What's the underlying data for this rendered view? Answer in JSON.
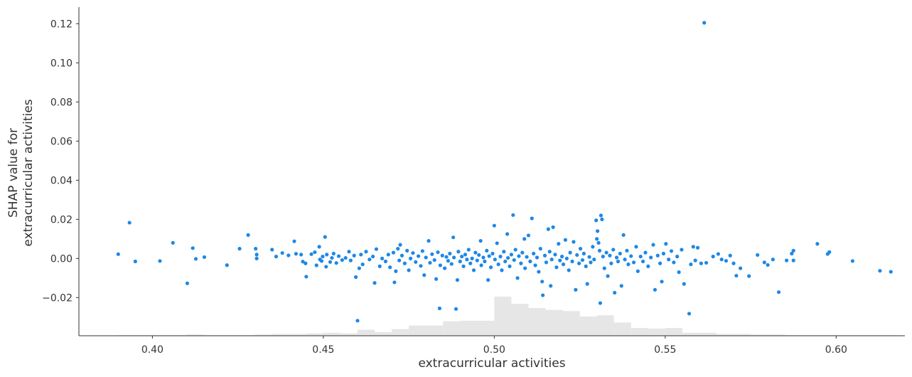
{
  "chart_data": {
    "type": "scatter",
    "title": "",
    "xlabel": "extracurricular activities",
    "ylabel_lines": [
      "SHAP value for",
      "extracurricular activities"
    ],
    "xlim": [
      0.3785,
      0.6201
    ],
    "ylim": [
      -0.0395,
      0.1285
    ],
    "x_ticks": [
      0.4,
      0.45,
      0.5,
      0.55,
      0.6
    ],
    "x_tick_labels": [
      "0.40",
      "0.45",
      "0.50",
      "0.55",
      "0.60"
    ],
    "y_ticks": [
      -0.02,
      0.0,
      0.02,
      0.04,
      0.06,
      0.08,
      0.1,
      0.12
    ],
    "y_tick_labels": [
      "−0.02",
      "0.00",
      "0.02",
      "0.04",
      "0.06",
      "0.08",
      "0.10",
      "0.12"
    ],
    "grid": false,
    "point_color": "#1e88e5",
    "histogram_color": "#e6e6e6",
    "histogram": {
      "description_units": "feature value bins with relative counts",
      "bins": [
        {
          "x0": 0.39,
          "x1": 0.41,
          "count": 1
        },
        {
          "x0": 0.41,
          "x1": 0.415,
          "count": 2
        },
        {
          "x0": 0.415,
          "x1": 0.43,
          "count": 1
        },
        {
          "x0": 0.43,
          "x1": 0.435,
          "count": 2
        },
        {
          "x0": 0.435,
          "x1": 0.44,
          "count": 3
        },
        {
          "x0": 0.44,
          "x1": 0.445,
          "count": 3
        },
        {
          "x0": 0.445,
          "x1": 0.45,
          "count": 4
        },
        {
          "x0": 0.45,
          "x1": 0.455,
          "count": 5
        },
        {
          "x0": 0.455,
          "x1": 0.46,
          "count": 4
        },
        {
          "x0": 0.46,
          "x1": 0.465,
          "count": 10
        },
        {
          "x0": 0.465,
          "x1": 0.47,
          "count": 6
        },
        {
          "x0": 0.47,
          "x1": 0.475,
          "count": 11
        },
        {
          "x0": 0.475,
          "x1": 0.48,
          "count": 17
        },
        {
          "x0": 0.48,
          "x1": 0.485,
          "count": 17
        },
        {
          "x0": 0.485,
          "x1": 0.49,
          "count": 24
        },
        {
          "x0": 0.49,
          "x1": 0.495,
          "count": 25
        },
        {
          "x0": 0.495,
          "x1": 0.5,
          "count": 25
        },
        {
          "x0": 0.5,
          "x1": 0.505,
          "count": 65
        },
        {
          "x0": 0.505,
          "x1": 0.51,
          "count": 53
        },
        {
          "x0": 0.51,
          "x1": 0.515,
          "count": 46
        },
        {
          "x0": 0.515,
          "x1": 0.52,
          "count": 43
        },
        {
          "x0": 0.52,
          "x1": 0.525,
          "count": 41
        },
        {
          "x0": 0.525,
          "x1": 0.53,
          "count": 32
        },
        {
          "x0": 0.53,
          "x1": 0.535,
          "count": 34
        },
        {
          "x0": 0.535,
          "x1": 0.54,
          "count": 22
        },
        {
          "x0": 0.54,
          "x1": 0.545,
          "count": 13
        },
        {
          "x0": 0.545,
          "x1": 0.55,
          "count": 12
        },
        {
          "x0": 0.55,
          "x1": 0.555,
          "count": 13
        },
        {
          "x0": 0.555,
          "x1": 0.56,
          "count": 5
        },
        {
          "x0": 0.56,
          "x1": 0.565,
          "count": 5
        },
        {
          "x0": 0.565,
          "x1": 0.575,
          "count": 3
        },
        {
          "x0": 0.575,
          "x1": 0.585,
          "count": 2
        },
        {
          "x0": 0.585,
          "x1": 0.6,
          "count": 1
        },
        {
          "x0": 0.6,
          "x1": 0.618,
          "count": 1
        }
      ]
    },
    "points": [
      {
        "x": 0.5614,
        "y": 0.1205
      },
      {
        "x": 0.3933,
        "y": 0.0183
      },
      {
        "x": 0.39,
        "y": 0.0022
      },
      {
        "x": 0.395,
        "y": -0.0015
      },
      {
        "x": 0.4022,
        "y": -0.0013
      },
      {
        "x": 0.406,
        "y": 0.008
      },
      {
        "x": 0.4102,
        "y": -0.0127
      },
      {
        "x": 0.4118,
        "y": 0.0053
      },
      {
        "x": 0.4127,
        "y": -0.0002
      },
      {
        "x": 0.4152,
        "y": 0.0007
      },
      {
        "x": 0.4218,
        "y": -0.0034
      },
      {
        "x": 0.4255,
        "y": 0.005
      },
      {
        "x": 0.428,
        "y": 0.012
      },
      {
        "x": 0.4302,
        "y": 0.005
      },
      {
        "x": 0.4305,
        "y": 0.002
      },
      {
        "x": 0.4305,
        "y": 0.0
      },
      {
        "x": 0.435,
        "y": 0.0045
      },
      {
        "x": 0.4362,
        "y": 0.001
      },
      {
        "x": 0.438,
        "y": 0.0028
      },
      {
        "x": 0.4398,
        "y": 0.0016
      },
      {
        "x": 0.4415,
        "y": 0.0088
      },
      {
        "x": 0.442,
        "y": 0.0024
      },
      {
        "x": 0.4435,
        "y": 0.002
      },
      {
        "x": 0.444,
        "y": -0.0016
      },
      {
        "x": 0.4448,
        "y": -0.0025
      },
      {
        "x": 0.445,
        "y": -0.0093
      },
      {
        "x": 0.4465,
        "y": 0.0022
      },
      {
        "x": 0.4475,
        "y": 0.0032
      },
      {
        "x": 0.448,
        "y": -0.0035
      },
      {
        "x": 0.4488,
        "y": 0.006
      },
      {
        "x": 0.449,
        "y": -0.0005
      },
      {
        "x": 0.4495,
        "y": -0.0013
      },
      {
        "x": 0.4498,
        "y": 0.001
      },
      {
        "x": 0.4505,
        "y": 0.011
      },
      {
        "x": 0.4508,
        "y": -0.0042
      },
      {
        "x": 0.451,
        "y": 0.002
      },
      {
        "x": 0.452,
        "y": -0.0018
      },
      {
        "x": 0.4525,
        "y": 0.0003
      },
      {
        "x": 0.453,
        "y": 0.0025
      },
      {
        "x": 0.4538,
        "y": -0.0023
      },
      {
        "x": 0.4545,
        "y": 0.0012
      },
      {
        "x": 0.4555,
        "y": -0.0008
      },
      {
        "x": 0.4565,
        "y": 0.0003
      },
      {
        "x": 0.4575,
        "y": 0.0035
      },
      {
        "x": 0.458,
        "y": -0.001
      },
      {
        "x": 0.459,
        "y": 0.0015
      },
      {
        "x": 0.4595,
        "y": -0.0095
      },
      {
        "x": 0.46,
        "y": -0.0318
      },
      {
        "x": 0.4605,
        "y": -0.005
      },
      {
        "x": 0.461,
        "y": 0.002
      },
      {
        "x": 0.4615,
        "y": -0.003
      },
      {
        "x": 0.4625,
        "y": 0.0035
      },
      {
        "x": 0.4635,
        "y": -0.0005
      },
      {
        "x": 0.4645,
        "y": 0.001
      },
      {
        "x": 0.465,
        "y": -0.0125
      },
      {
        "x": 0.4655,
        "y": 0.0048
      },
      {
        "x": 0.4665,
        "y": -0.004
      },
      {
        "x": 0.4672,
        "y": 0.0
      },
      {
        "x": 0.4682,
        "y": -0.0015
      },
      {
        "x": 0.469,
        "y": 0.002
      },
      {
        "x": 0.4695,
        "y": -0.0045
      },
      {
        "x": 0.4705,
        "y": 0.003
      },
      {
        "x": 0.4708,
        "y": -0.0122
      },
      {
        "x": 0.4712,
        "y": -0.0065
      },
      {
        "x": 0.4718,
        "y": 0.005
      },
      {
        "x": 0.4722,
        "y": -0.001
      },
      {
        "x": 0.4725,
        "y": 0.007
      },
      {
        "x": 0.473,
        "y": 0.0015
      },
      {
        "x": 0.4738,
        "y": -0.0025
      },
      {
        "x": 0.4745,
        "y": 0.004
      },
      {
        "x": 0.475,
        "y": -0.006
      },
      {
        "x": 0.4755,
        "y": 0.0
      },
      {
        "x": 0.4762,
        "y": 0.0028
      },
      {
        "x": 0.477,
        "y": -0.0018
      },
      {
        "x": 0.4778,
        "y": 0.0012
      },
      {
        "x": 0.4785,
        "y": -0.0038
      },
      {
        "x": 0.479,
        "y": 0.0038
      },
      {
        "x": 0.4795,
        "y": -0.0085
      },
      {
        "x": 0.48,
        "y": 0.0005
      },
      {
        "x": 0.4808,
        "y": 0.009
      },
      {
        "x": 0.4812,
        "y": -0.0022
      },
      {
        "x": 0.4818,
        "y": 0.0022
      },
      {
        "x": 0.4825,
        "y": -0.0008
      },
      {
        "x": 0.483,
        "y": -0.0105
      },
      {
        "x": 0.4835,
        "y": 0.0032
      },
      {
        "x": 0.484,
        "y": -0.0255
      },
      {
        "x": 0.4842,
        "y": -0.0035
      },
      {
        "x": 0.4848,
        "y": 0.0015
      },
      {
        "x": 0.4855,
        "y": -0.005
      },
      {
        "x": 0.486,
        "y": 0.0008
      },
      {
        "x": 0.4865,
        "y": -0.0012
      },
      {
        "x": 0.487,
        "y": 0.0025
      },
      {
        "x": 0.4875,
        "y": -0.0028
      },
      {
        "x": 0.488,
        "y": 0.0108
      },
      {
        "x": 0.4882,
        "y": 0.0005
      },
      {
        "x": 0.4888,
        "y": -0.0258
      },
      {
        "x": 0.4892,
        "y": -0.011
      },
      {
        "x": 0.4895,
        "y": 0.0035
      },
      {
        "x": 0.49,
        "y": -0.0015
      },
      {
        "x": 0.4905,
        "y": 0.001
      },
      {
        "x": 0.491,
        "y": -0.004
      },
      {
        "x": 0.4915,
        "y": 0.002
      },
      {
        "x": 0.492,
        "y": -0.0005
      },
      {
        "x": 0.4925,
        "y": 0.0045
      },
      {
        "x": 0.493,
        "y": -0.0025
      },
      {
        "x": 0.4935,
        "y": 0.0
      },
      {
        "x": 0.494,
        "y": -0.006
      },
      {
        "x": 0.4945,
        "y": 0.003
      },
      {
        "x": 0.495,
        "y": -0.001
      },
      {
        "x": 0.4955,
        "y": 0.0018
      },
      {
        "x": 0.496,
        "y": 0.009
      },
      {
        "x": 0.4962,
        "y": -0.0035
      },
      {
        "x": 0.4968,
        "y": 0.0005
      },
      {
        "x": 0.4972,
        "y": -0.0015
      },
      {
        "x": 0.4978,
        "y": 0.004
      },
      {
        "x": 0.4982,
        "y": -0.011
      },
      {
        "x": 0.4985,
        "y": 0.0012
      },
      {
        "x": 0.499,
        "y": -0.0045
      },
      {
        "x": 0.4995,
        "y": 0.0025
      },
      {
        "x": 0.5,
        "y": 0.0168
      },
      {
        "x": 0.5002,
        "y": -0.0005
      },
      {
        "x": 0.5008,
        "y": 0.0078
      },
      {
        "x": 0.5012,
        "y": -0.003
      },
      {
        "x": 0.5018,
        "y": 0.001
      },
      {
        "x": 0.5022,
        "y": -0.006
      },
      {
        "x": 0.5028,
        "y": 0.0035
      },
      {
        "x": 0.5032,
        "y": -0.0015
      },
      {
        "x": 0.5038,
        "y": 0.0125
      },
      {
        "x": 0.504,
        "y": 0.0003
      },
      {
        "x": 0.5045,
        "y": -0.004
      },
      {
        "x": 0.505,
        "y": 0.002
      },
      {
        "x": 0.5055,
        "y": 0.0222
      },
      {
        "x": 0.5058,
        "y": -0.0008
      },
      {
        "x": 0.5062,
        "y": 0.0045
      },
      {
        "x": 0.5068,
        "y": -0.01
      },
      {
        "x": 0.5072,
        "y": 0.0012
      },
      {
        "x": 0.5078,
        "y": -0.0025
      },
      {
        "x": 0.5082,
        "y": 0.003
      },
      {
        "x": 0.5088,
        "y": 0.01
      },
      {
        "x": 0.509,
        "y": -0.005
      },
      {
        "x": 0.5095,
        "y": 0.0008
      },
      {
        "x": 0.51,
        "y": 0.0118
      },
      {
        "x": 0.5105,
        "y": -0.0015
      },
      {
        "x": 0.511,
        "y": 0.0205
      },
      {
        "x": 0.5115,
        "y": 0.0025
      },
      {
        "x": 0.512,
        "y": -0.0035
      },
      {
        "x": 0.5125,
        "y": 0.0005
      },
      {
        "x": 0.513,
        "y": -0.0068
      },
      {
        "x": 0.5135,
        "y": 0.005
      },
      {
        "x": 0.514,
        "y": -0.0118
      },
      {
        "x": 0.5142,
        "y": -0.0188
      },
      {
        "x": 0.5148,
        "y": 0.0015
      },
      {
        "x": 0.5152,
        "y": -0.002
      },
      {
        "x": 0.5158,
        "y": 0.015
      },
      {
        "x": 0.5162,
        "y": 0.0035
      },
      {
        "x": 0.5165,
        "y": -0.014
      },
      {
        "x": 0.5168,
        "y": -0.0005
      },
      {
        "x": 0.5172,
        "y": 0.016
      },
      {
        "x": 0.5178,
        "y": 0.002
      },
      {
        "x": 0.5182,
        "y": -0.0045
      },
      {
        "x": 0.5188,
        "y": 0.0075
      },
      {
        "x": 0.5192,
        "y": -0.001
      },
      {
        "x": 0.5198,
        "y": 0.001
      },
      {
        "x": 0.5202,
        "y": -0.003
      },
      {
        "x": 0.5208,
        "y": 0.0095
      },
      {
        "x": 0.5212,
        "y": 0.0
      },
      {
        "x": 0.5218,
        "y": -0.006
      },
      {
        "x": 0.5222,
        "y": 0.003
      },
      {
        "x": 0.5228,
        "y": -0.0015
      },
      {
        "x": 0.5232,
        "y": 0.0085
      },
      {
        "x": 0.5238,
        "y": -0.016
      },
      {
        "x": 0.5242,
        "y": 0.0018
      },
      {
        "x": 0.5248,
        "y": -0.0025
      },
      {
        "x": 0.5252,
        "y": 0.005
      },
      {
        "x": 0.5258,
        "y": -0.0008
      },
      {
        "x": 0.5262,
        "y": 0.0025
      },
      {
        "x": 0.5268,
        "y": -0.004
      },
      {
        "x": 0.5272,
        "y": -0.013
      },
      {
        "x": 0.5278,
        "y": 0.0008
      },
      {
        "x": 0.5282,
        "y": -0.002
      },
      {
        "x": 0.5288,
        "y": 0.006
      },
      {
        "x": 0.5292,
        "y": -0.0005
      },
      {
        "x": 0.5298,
        "y": 0.0195
      },
      {
        "x": 0.53,
        "y": 0.01
      },
      {
        "x": 0.5302,
        "y": 0.014
      },
      {
        "x": 0.5305,
        "y": 0.008
      },
      {
        "x": 0.5308,
        "y": 0.004
      },
      {
        "x": 0.531,
        "y": -0.0228
      },
      {
        "x": 0.5312,
        "y": 0.022
      },
      {
        "x": 0.5315,
        "y": 0.02
      },
      {
        "x": 0.5318,
        "y": 0.001
      },
      {
        "x": 0.5322,
        "y": -0.005
      },
      {
        "x": 0.5328,
        "y": 0.003
      },
      {
        "x": 0.5332,
        "y": -0.009
      },
      {
        "x": 0.5338,
        "y": 0.0015
      },
      {
        "x": 0.5342,
        "y": -0.0025
      },
      {
        "x": 0.5348,
        "y": 0.0045
      },
      {
        "x": 0.5352,
        "y": -0.0175
      },
      {
        "x": 0.5358,
        "y": 0.0005
      },
      {
        "x": 0.5362,
        "y": -0.0015
      },
      {
        "x": 0.5368,
        "y": 0.0025
      },
      {
        "x": 0.5372,
        "y": -0.014
      },
      {
        "x": 0.5378,
        "y": 0.012
      },
      {
        "x": 0.5382,
        "y": -0.0005
      },
      {
        "x": 0.5388,
        "y": 0.004
      },
      {
        "x": 0.5392,
        "y": -0.003
      },
      {
        "x": 0.54,
        "y": 0.0012
      },
      {
        "x": 0.5408,
        "y": -0.002
      },
      {
        "x": 0.5415,
        "y": 0.006
      },
      {
        "x": 0.542,
        "y": -0.0065
      },
      {
        "x": 0.5428,
        "y": 0.001
      },
      {
        "x": 0.5435,
        "y": -0.0015
      },
      {
        "x": 0.5442,
        "y": 0.003
      },
      {
        "x": 0.545,
        "y": -0.004
      },
      {
        "x": 0.5458,
        "y": 0.0005
      },
      {
        "x": 0.5465,
        "y": 0.007
      },
      {
        "x": 0.547,
        "y": -0.016
      },
      {
        "x": 0.5478,
        "y": 0.0015
      },
      {
        "x": 0.5485,
        "y": -0.0025
      },
      {
        "x": 0.549,
        "y": -0.0118
      },
      {
        "x": 0.5495,
        "y": 0.0025
      },
      {
        "x": 0.5502,
        "y": 0.0075
      },
      {
        "x": 0.551,
        "y": -0.0005
      },
      {
        "x": 0.5518,
        "y": 0.0038
      },
      {
        "x": 0.5525,
        "y": -0.002
      },
      {
        "x": 0.5535,
        "y": 0.001
      },
      {
        "x": 0.554,
        "y": -0.007
      },
      {
        "x": 0.5548,
        "y": 0.0045
      },
      {
        "x": 0.5555,
        "y": -0.013
      },
      {
        "x": 0.557,
        "y": -0.0282
      },
      {
        "x": 0.5575,
        "y": -0.003
      },
      {
        "x": 0.5582,
        "y": 0.006
      },
      {
        "x": 0.5588,
        "y": -0.001
      },
      {
        "x": 0.5595,
        "y": 0.0055
      },
      {
        "x": 0.5605,
        "y": -0.0025
      },
      {
        "x": 0.562,
        "y": -0.0022
      },
      {
        "x": 0.564,
        "y": 0.001
      },
      {
        "x": 0.5655,
        "y": 0.0023
      },
      {
        "x": 0.5665,
        "y": -0.0005
      },
      {
        "x": 0.5678,
        "y": -0.0012
      },
      {
        "x": 0.569,
        "y": 0.0015
      },
      {
        "x": 0.57,
        "y": -0.0025
      },
      {
        "x": 0.5708,
        "y": -0.0088
      },
      {
        "x": 0.572,
        "y": -0.005
      },
      {
        "x": 0.5745,
        "y": -0.009
      },
      {
        "x": 0.577,
        "y": 0.0018
      },
      {
        "x": 0.579,
        "y": -0.002
      },
      {
        "x": 0.58,
        "y": -0.0033
      },
      {
        "x": 0.5815,
        "y": -0.0005
      },
      {
        "x": 0.5832,
        "y": -0.0172
      },
      {
        "x": 0.5855,
        "y": -0.001
      },
      {
        "x": 0.587,
        "y": 0.0025
      },
      {
        "x": 0.5875,
        "y": 0.004
      },
      {
        "x": 0.5875,
        "y": -0.001
      },
      {
        "x": 0.5945,
        "y": 0.0075
      },
      {
        "x": 0.5975,
        "y": 0.0023
      },
      {
        "x": 0.598,
        "y": 0.0033
      },
      {
        "x": 0.6048,
        "y": -0.0013
      },
      {
        "x": 0.6128,
        "y": -0.0063
      },
      {
        "x": 0.616,
        "y": -0.0068
      }
    ]
  }
}
